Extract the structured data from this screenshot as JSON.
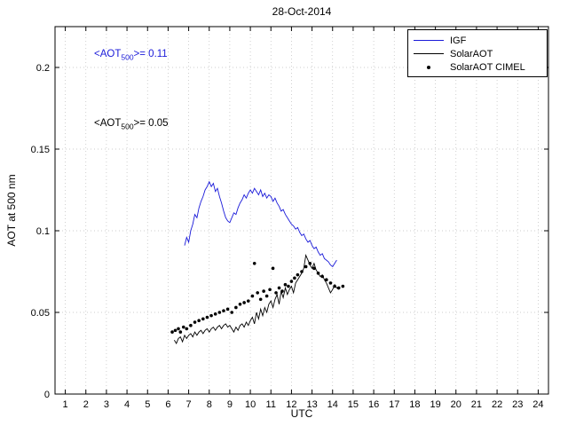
{
  "chart_data": {
    "type": "line",
    "title": "28-Oct-2014",
    "xlabel": "UTC",
    "ylabel": "AOT at 500 nm",
    "xlim": [
      0.5,
      24.5
    ],
    "ylim": [
      0,
      0.225
    ],
    "xticks": [
      1,
      2,
      3,
      4,
      5,
      6,
      7,
      8,
      9,
      10,
      11,
      12,
      13,
      14,
      15,
      16,
      17,
      18,
      19,
      20,
      21,
      22,
      23,
      24
    ],
    "yticks": [
      0,
      0.05,
      0.1,
      0.15,
      0.2
    ],
    "grid": true,
    "legend_position": "top-right",
    "colors": {
      "igf_blue": "#1a1ad9",
      "solar_black": "#000000",
      "grid": "#bdbdbd",
      "axis": "#000000",
      "background": "#ffffff"
    },
    "annotations": [
      {
        "pre": "<AOT",
        "sub": "500",
        "post": ">= 0.11",
        "color": "#1a1ad9"
      },
      {
        "pre": "<AOT",
        "sub": "500",
        "post": ">= 0.05",
        "color": "#000000"
      }
    ],
    "series": [
      {
        "name": "IGF",
        "type": "line",
        "color": "#1a1ad9",
        "points": [
          [
            6.8,
            0.091
          ],
          [
            6.9,
            0.096
          ],
          [
            7.0,
            0.093
          ],
          [
            7.1,
            0.1
          ],
          [
            7.2,
            0.104
          ],
          [
            7.3,
            0.11
          ],
          [
            7.4,
            0.108
          ],
          [
            7.5,
            0.114
          ],
          [
            7.6,
            0.118
          ],
          [
            7.7,
            0.121
          ],
          [
            7.8,
            0.125
          ],
          [
            7.9,
            0.127
          ],
          [
            8.0,
            0.13
          ],
          [
            8.1,
            0.127
          ],
          [
            8.2,
            0.129
          ],
          [
            8.3,
            0.124
          ],
          [
            8.4,
            0.126
          ],
          [
            8.5,
            0.121
          ],
          [
            8.6,
            0.117
          ],
          [
            8.7,
            0.112
          ],
          [
            8.8,
            0.108
          ],
          [
            8.9,
            0.106
          ],
          [
            9.0,
            0.105
          ],
          [
            9.1,
            0.108
          ],
          [
            9.2,
            0.111
          ],
          [
            9.3,
            0.11
          ],
          [
            9.4,
            0.114
          ],
          [
            9.5,
            0.117
          ],
          [
            9.6,
            0.119
          ],
          [
            9.7,
            0.122
          ],
          [
            9.8,
            0.12
          ],
          [
            9.9,
            0.123
          ],
          [
            10.0,
            0.125
          ],
          [
            10.1,
            0.123
          ],
          [
            10.2,
            0.126
          ],
          [
            10.3,
            0.124
          ],
          [
            10.4,
            0.122
          ],
          [
            10.5,
            0.125
          ],
          [
            10.6,
            0.121
          ],
          [
            10.7,
            0.123
          ],
          [
            10.8,
            0.12
          ],
          [
            10.9,
            0.122
          ],
          [
            11.0,
            0.121
          ],
          [
            11.1,
            0.118
          ],
          [
            11.2,
            0.12
          ],
          [
            11.3,
            0.117
          ],
          [
            11.4,
            0.115
          ],
          [
            11.5,
            0.112
          ],
          [
            11.6,
            0.113
          ],
          [
            11.7,
            0.11
          ],
          [
            11.8,
            0.108
          ],
          [
            11.9,
            0.106
          ],
          [
            12.0,
            0.104
          ],
          [
            12.1,
            0.103
          ],
          [
            12.2,
            0.101
          ],
          [
            12.3,
            0.102
          ],
          [
            12.4,
            0.099
          ],
          [
            12.5,
            0.097
          ],
          [
            12.6,
            0.098
          ],
          [
            12.7,
            0.095
          ],
          [
            12.8,
            0.093
          ],
          [
            12.9,
            0.094
          ],
          [
            13.0,
            0.091
          ],
          [
            13.1,
            0.089
          ],
          [
            13.2,
            0.09
          ],
          [
            13.3,
            0.087
          ],
          [
            13.4,
            0.085
          ],
          [
            13.5,
            0.086
          ],
          [
            13.6,
            0.083
          ],
          [
            13.7,
            0.082
          ],
          [
            13.8,
            0.081
          ],
          [
            13.9,
            0.079
          ],
          [
            14.0,
            0.078
          ],
          [
            14.1,
            0.08
          ],
          [
            14.2,
            0.082
          ]
        ]
      },
      {
        "name": "SolarAOT",
        "type": "line",
        "color": "#000000",
        "points": [
          [
            6.3,
            0.033
          ],
          [
            6.4,
            0.031
          ],
          [
            6.5,
            0.034
          ],
          [
            6.6,
            0.035
          ],
          [
            6.7,
            0.032
          ],
          [
            6.8,
            0.036
          ],
          [
            6.9,
            0.034
          ],
          [
            7.0,
            0.036
          ],
          [
            7.1,
            0.037
          ],
          [
            7.2,
            0.035
          ],
          [
            7.3,
            0.038
          ],
          [
            7.4,
            0.036
          ],
          [
            7.5,
            0.038
          ],
          [
            7.6,
            0.039
          ],
          [
            7.7,
            0.037
          ],
          [
            7.8,
            0.039
          ],
          [
            7.9,
            0.04
          ],
          [
            8.0,
            0.038
          ],
          [
            8.1,
            0.04
          ],
          [
            8.2,
            0.041
          ],
          [
            8.3,
            0.039
          ],
          [
            8.4,
            0.041
          ],
          [
            8.5,
            0.042
          ],
          [
            8.6,
            0.04
          ],
          [
            8.7,
            0.042
          ],
          [
            8.8,
            0.043
          ],
          [
            8.9,
            0.041
          ],
          [
            9.0,
            0.042
          ],
          [
            9.1,
            0.04
          ],
          [
            9.2,
            0.038
          ],
          [
            9.3,
            0.041
          ],
          [
            9.4,
            0.039
          ],
          [
            9.5,
            0.042
          ],
          [
            9.6,
            0.043
          ],
          [
            9.7,
            0.041
          ],
          [
            9.8,
            0.044
          ],
          [
            9.9,
            0.042
          ],
          [
            10.0,
            0.045
          ],
          [
            10.1,
            0.047
          ],
          [
            10.2,
            0.043
          ],
          [
            10.3,
            0.05
          ],
          [
            10.4,
            0.046
          ],
          [
            10.5,
            0.052
          ],
          [
            10.6,
            0.048
          ],
          [
            10.7,
            0.053
          ],
          [
            10.8,
            0.05
          ],
          [
            10.9,
            0.055
          ],
          [
            11.0,
            0.057
          ],
          [
            11.1,
            0.053
          ],
          [
            11.2,
            0.058
          ],
          [
            11.3,
            0.061
          ],
          [
            11.4,
            0.055
          ],
          [
            11.5,
            0.063
          ],
          [
            11.6,
            0.059
          ],
          [
            11.7,
            0.065
          ],
          [
            11.8,
            0.061
          ],
          [
            11.9,
            0.064
          ],
          [
            12.0,
            0.066
          ],
          [
            12.1,
            0.062
          ],
          [
            12.2,
            0.068
          ],
          [
            12.3,
            0.07
          ],
          [
            12.4,
            0.072
          ],
          [
            12.5,
            0.074
          ],
          [
            12.6,
            0.077
          ],
          [
            12.7,
            0.085
          ],
          [
            12.8,
            0.082
          ],
          [
            12.9,
            0.079
          ],
          [
            13.0,
            0.077
          ],
          [
            13.1,
            0.08
          ],
          [
            13.2,
            0.076
          ],
          [
            13.3,
            0.074
          ],
          [
            13.4,
            0.072
          ],
          [
            13.5,
            0.073
          ],
          [
            13.6,
            0.07
          ],
          [
            13.7,
            0.068
          ],
          [
            13.8,
            0.065
          ],
          [
            13.9,
            0.062
          ],
          [
            14.0,
            0.064
          ],
          [
            14.1,
            0.067
          ],
          [
            14.2,
            0.065
          ],
          [
            14.3,
            0.064
          ]
        ]
      },
      {
        "name": "SolarAOT CIMEL",
        "type": "scatter",
        "color": "#000000",
        "points": [
          [
            6.2,
            0.038
          ],
          [
            6.35,
            0.039
          ],
          [
            6.5,
            0.04
          ],
          [
            6.6,
            0.038
          ],
          [
            6.75,
            0.041
          ],
          [
            6.9,
            0.04
          ],
          [
            7.1,
            0.042
          ],
          [
            7.3,
            0.044
          ],
          [
            7.5,
            0.045
          ],
          [
            7.7,
            0.046
          ],
          [
            7.9,
            0.047
          ],
          [
            8.1,
            0.048
          ],
          [
            8.3,
            0.049
          ],
          [
            8.5,
            0.05
          ],
          [
            8.7,
            0.051
          ],
          [
            8.9,
            0.052
          ],
          [
            9.1,
            0.05
          ],
          [
            9.3,
            0.053
          ],
          [
            9.5,
            0.055
          ],
          [
            9.7,
            0.056
          ],
          [
            9.9,
            0.057
          ],
          [
            10.1,
            0.06
          ],
          [
            10.2,
            0.08
          ],
          [
            10.35,
            0.062
          ],
          [
            10.5,
            0.058
          ],
          [
            10.65,
            0.063
          ],
          [
            10.8,
            0.06
          ],
          [
            10.95,
            0.064
          ],
          [
            11.1,
            0.077
          ],
          [
            11.25,
            0.062
          ],
          [
            11.4,
            0.065
          ],
          [
            11.55,
            0.063
          ],
          [
            11.7,
            0.067
          ],
          [
            11.85,
            0.066
          ],
          [
            12.0,
            0.069
          ],
          [
            12.15,
            0.071
          ],
          [
            12.3,
            0.073
          ],
          [
            12.5,
            0.075
          ],
          [
            12.7,
            0.078
          ],
          [
            12.9,
            0.08
          ],
          [
            13.1,
            0.077
          ],
          [
            13.3,
            0.074
          ],
          [
            13.5,
            0.072
          ],
          [
            13.7,
            0.07
          ],
          [
            13.9,
            0.068
          ],
          [
            14.1,
            0.066
          ],
          [
            14.3,
            0.065
          ],
          [
            14.5,
            0.066
          ]
        ]
      }
    ]
  }
}
